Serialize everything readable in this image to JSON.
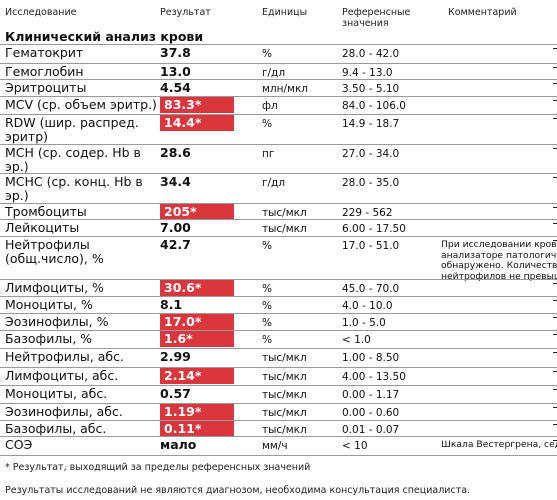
{
  "header": {
    "col_test": "Исследование",
    "col_result": "Результат",
    "col_units": "Единицы",
    "col_ref_line1": "Референсные",
    "col_ref_line2": "значения",
    "col_comment": "Комментарий"
  },
  "section_title": "Клинический анализ крови",
  "rows": [
    {
      "name": [
        "Гематокрит"
      ],
      "result": "37.8",
      "flagged": false,
      "unit": "%",
      "ref": "28.0 - 42.0",
      "comment": []
    },
    {
      "name": [
        "Гемоглобин"
      ],
      "result": "13.0",
      "flagged": false,
      "unit": "г/дл",
      "ref": "9.4 - 13.0",
      "comment": []
    },
    {
      "name": [
        "Эритроциты"
      ],
      "result": "4.54",
      "flagged": false,
      "unit": "млн/мкл",
      "ref": "3.50 - 5.10",
      "comment": []
    },
    {
      "name": [
        "MCV (ср. объем эритр.)"
      ],
      "result": "83.3*",
      "flagged": true,
      "unit": "фл",
      "ref": "84.0 - 106.0",
      "comment": []
    },
    {
      "name": [
        "RDW (шир. распред.",
        "эритр)"
      ],
      "result": "14.4*",
      "flagged": true,
      "unit": "%",
      "ref": "14.9 - 18.7",
      "comment": []
    },
    {
      "name": [
        "MCH (ср. содер. Hb в",
        "эр.)"
      ],
      "result": "28.6",
      "flagged": false,
      "unit": "пг",
      "ref": "27.0 - 34.0",
      "comment": []
    },
    {
      "name": [
        "MCHC (ср. конц. Hb в",
        "эр.)"
      ],
      "result": "34.4",
      "flagged": false,
      "unit": "г/дл",
      "ref": "28.0 - 35.0",
      "comment": []
    },
    {
      "name": [
        "Тромбоциты"
      ],
      "result": "205*",
      "flagged": true,
      "unit": "тыс/мкл",
      "ref": "229 - 562",
      "comment": []
    },
    {
      "name": [
        "Лейкоциты"
      ],
      "result": "7.00",
      "flagged": false,
      "unit": "тыс/мкл",
      "ref": "6.00 - 17.50",
      "comment": []
    },
    {
      "name": [
        "Нейтрофилы",
        "(общ.число), %"
      ],
      "result": "42.7",
      "flagged": false,
      "unit": "%",
      "ref": "17.0 - 51.0",
      "comment": [
        "При исследовании крови н",
        "анализаторе патологичес",
        "обнаружено. Количество г",
        "нейтрофилов не превыша"
      ]
    },
    {
      "name": [
        "Лимфоциты, %"
      ],
      "result": "30.6*",
      "flagged": true,
      "unit": "%",
      "ref": "45.0 - 70.0",
      "comment": []
    },
    {
      "name": [
        "Моноциты, %"
      ],
      "result": "8.1",
      "flagged": false,
      "unit": "%",
      "ref": "4.0 - 10.0",
      "comment": []
    },
    {
      "name": [
        "Эозинофилы, %"
      ],
      "result": "17.0*",
      "flagged": true,
      "unit": "%",
      "ref": "1.0 - 5.0",
      "comment": []
    },
    {
      "name": [
        "Базофилы, %"
      ],
      "result": "1.6*",
      "flagged": true,
      "unit": "%",
      "ref": "< 1.0",
      "comment": []
    },
    {
      "name": [
        "Нейтрофилы, абс."
      ],
      "result": "2.99",
      "flagged": false,
      "unit": "тыс/мкл",
      "ref": "1.00 - 8.50",
      "comment": []
    },
    {
      "name": [
        "Лимфоциты, абс."
      ],
      "result": "2.14*",
      "flagged": true,
      "unit": "тыс/мкл",
      "ref": "4.00 - 13.50",
      "comment": []
    },
    {
      "name": [
        "Моноциты, абс."
      ],
      "result": "0.57",
      "flagged": false,
      "unit": "тыс/мкл",
      "ref": "0.00 - 1.17",
      "comment": []
    },
    {
      "name": [
        "Эозинофилы, абс."
      ],
      "result": "1.19*",
      "flagged": true,
      "unit": "тыс/мкл",
      "ref": "0.00 - 0.60",
      "comment": []
    },
    {
      "name": [
        "Базофилы, абс."
      ],
      "result": "0.11*",
      "flagged": true,
      "unit": "тыс/мкл",
      "ref": "0.01 - 0.07",
      "comment": []
    },
    {
      "name": [
        "СОЭ"
      ],
      "result": "мало",
      "flagged": false,
      "unit": "мм/ч",
      "ref": "< 10",
      "comment": [
        "Шкала Вестергрена, седим"
      ]
    }
  ],
  "footnote_flag": "* Результат, выходящий за пределы референсных значений",
  "footnote_disclaimer": "Результаты исследований не являются диагнозом, необходима консультация специалиста.",
  "colors": {
    "flag_background": "#d9363e",
    "flag_text": "#ffffff",
    "separator": "#9a9a9a"
  }
}
